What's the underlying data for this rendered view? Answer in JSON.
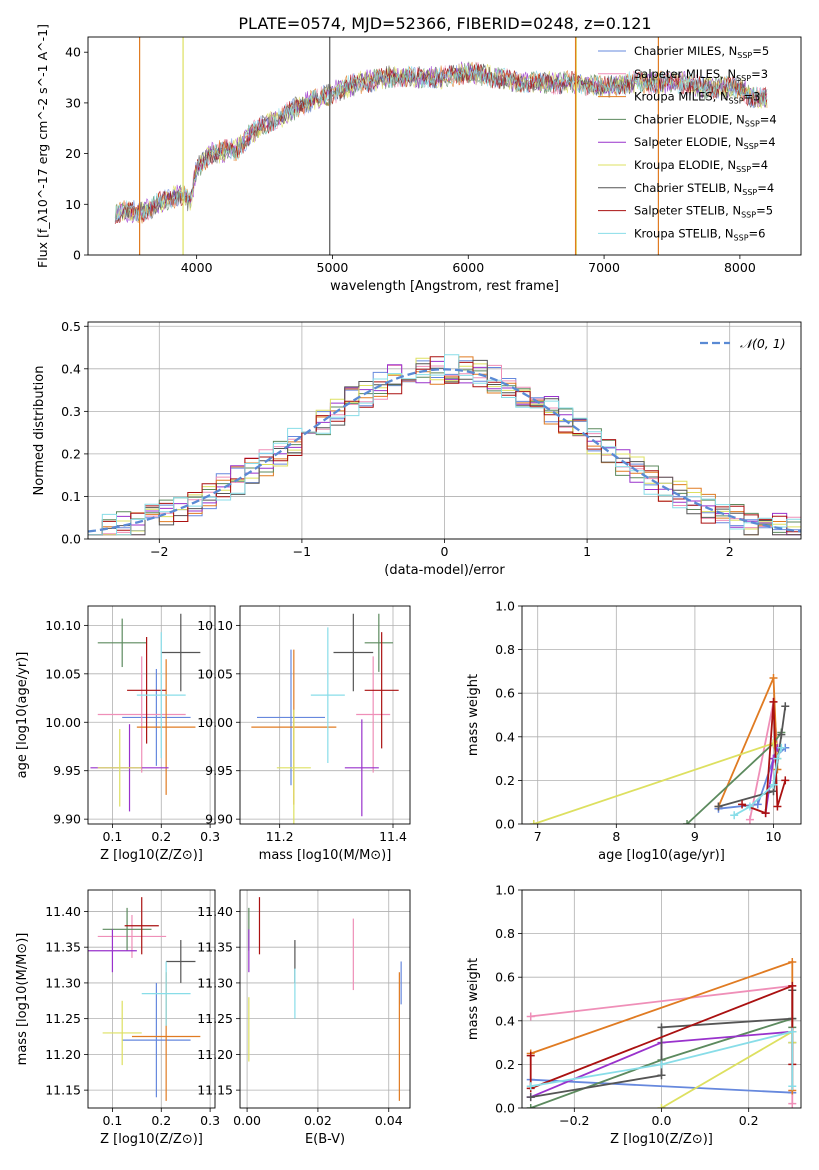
{
  "title": "PLATE=0574, MJD=52366, FIBERID=0248, z=0.121",
  "colors": {
    "Chabrier MILES": "#6688dd",
    "Salpeter MILES": "#ef8fb8",
    "Kroupa MILES": "#e07b22",
    "Chabrier ELODIE": "#5c8a5e",
    "Salpeter ELODIE": "#9932cc",
    "Kroupa ELODIE": "#dde060",
    "Chabrier STELIB": "#555555",
    "Salpeter STELIB": "#aa1111",
    "Kroupa STELIB": "#88dde8"
  },
  "chart_data": [
    {
      "id": "spectrum",
      "type": "line",
      "xlabel": "wavelength [Angstrom, rest frame]",
      "ylabel": "Flux [f_λ10^-17 erg cm^-2 s^-1 A^-1]",
      "xlim": [
        3200,
        8450
      ],
      "ylim": [
        0,
        43
      ],
      "xticks": [
        4000,
        5000,
        6000,
        7000,
        8000
      ],
      "yticks": [
        0,
        10,
        20,
        30,
        40
      ],
      "legend_position": "upper-right",
      "series": [
        {
          "name": "Chabrier MILES, N_SSP=5",
          "legend": "Chabrier MILES, N",
          "sub": "SSP",
          "suffix": "=5",
          "color": "Chabrier MILES"
        },
        {
          "name": "Salpeter MILES, N_SSP=3",
          "legend": "Salpeter MILES, N",
          "sub": "SSP",
          "suffix": "=3",
          "color": "Salpeter MILES"
        },
        {
          "name": "Kroupa MILES, N_SSP=3",
          "legend": "Kroupa MILES, N",
          "sub": "SSP",
          "suffix": "=3",
          "color": "Kroupa MILES"
        },
        {
          "name": "Chabrier ELODIE, N_SSP=4",
          "legend": "Chabrier ELODIE, N",
          "sub": "SSP",
          "suffix": "=4",
          "color": "Chabrier ELODIE"
        },
        {
          "name": "Salpeter ELODIE, N_SSP=4",
          "legend": "Salpeter ELODIE, N",
          "sub": "SSP",
          "suffix": "=4",
          "color": "Salpeter ELODIE"
        },
        {
          "name": "Kroupa ELODIE, N_SSP=4",
          "legend": "Kroupa ELODIE, N",
          "sub": "SSP",
          "suffix": "=4",
          "color": "Kroupa ELODIE"
        },
        {
          "name": "Chabrier STELIB, N_SSP=4",
          "legend": "Chabrier STELIB, N",
          "sub": "SSP",
          "suffix": "=4",
          "color": "Chabrier STELIB"
        },
        {
          "name": "Salpeter STELIB, N_SSP=5",
          "legend": "Salpeter STELIB, N",
          "sub": "SSP",
          "suffix": "=5",
          "color": "Salpeter STELIB"
        },
        {
          "name": "Kroupa STELIB, N_SSP=6",
          "legend": "Kroupa STELIB, N",
          "sub": "SSP",
          "suffix": "=6",
          "color": "Kroupa STELIB"
        }
      ],
      "continuum": [
        [
          3400,
          8.5
        ],
        [
          3600,
          8.5
        ],
        [
          3700,
          10
        ],
        [
          3800,
          11
        ],
        [
          3900,
          12
        ],
        [
          3950,
          10
        ],
        [
          4000,
          17
        ],
        [
          4100,
          20
        ],
        [
          4300,
          21
        ],
        [
          4400,
          24
        ],
        [
          4600,
          27
        ],
        [
          4800,
          30
        ],
        [
          5000,
          32
        ],
        [
          5200,
          34
        ],
        [
          5400,
          35
        ],
        [
          5600,
          35
        ],
        [
          5800,
          35
        ],
        [
          6000,
          36
        ],
        [
          6200,
          35
        ],
        [
          6400,
          34
        ],
        [
          6600,
          34
        ],
        [
          6800,
          34
        ],
        [
          7000,
          33
        ],
        [
          7200,
          34
        ],
        [
          7400,
          34
        ],
        [
          7600,
          34
        ],
        [
          7700,
          33
        ],
        [
          7800,
          33
        ],
        [
          8000,
          33
        ],
        [
          8100,
          31
        ],
        [
          8200,
          31
        ]
      ],
      "spikes": [
        {
          "x": 3580,
          "color": "Kroupa MILES"
        },
        {
          "x": 3900,
          "color": "Kroupa ELODIE"
        },
        {
          "x": 4980,
          "color": "Chabrier STELIB"
        },
        {
          "x": 6795,
          "color": "Kroupa ELODIE"
        },
        {
          "x": 6790,
          "color": "Kroupa MILES"
        },
        {
          "x": 7400,
          "color": "Kroupa MILES"
        }
      ]
    },
    {
      "id": "residuals",
      "type": "line",
      "xlabel": "(data-model)/error",
      "ylabel": "Normed distribution",
      "xlim": [
        -2.5,
        2.5
      ],
      "ylim": [
        0,
        0.51
      ],
      "xticks": [
        -2,
        -1,
        0,
        1,
        2
      ],
      "yticks": [
        0.0,
        0.1,
        0.2,
        0.3,
        0.4,
        0.5
      ],
      "legend": "𝒩(0, 1)",
      "legend_position": "upper-right",
      "bin_width": 0.1
    },
    {
      "id": "age-vs-Z",
      "type": "scatter",
      "xlabel": "Z [log10(Z/Z⊙)]",
      "ylabel": "age  [log10(age/yr)]",
      "xlim": [
        0.05,
        0.31
      ],
      "ylim": [
        9.895,
        10.12
      ],
      "xticks": [
        0.1,
        0.2,
        0.3
      ],
      "yticks": [
        9.9,
        9.95,
        10.0,
        10.05,
        10.1
      ],
      "points": [
        {
          "series": "Chabrier MILES",
          "x": 0.19,
          "xerr": 0.07,
          "y": 10.005,
          "yerr": 0.05
        },
        {
          "series": "Salpeter MILES",
          "x": 0.16,
          "xerr": 0.09,
          "y": 10.008,
          "yerr": 0.06
        },
        {
          "series": "Kroupa MILES",
          "x": 0.21,
          "xerr": 0.06,
          "y": 9.995,
          "yerr": 0.07
        },
        {
          "series": "Chabrier ELODIE",
          "x": 0.12,
          "xerr": 0.05,
          "y": 10.082,
          "yerr": 0.025
        },
        {
          "series": "Salpeter ELODIE",
          "x": 0.135,
          "xerr": 0.08,
          "y": 9.953,
          "yerr": 0.045
        },
        {
          "series": "Kroupa ELODIE",
          "x": 0.115,
          "xerr": 0.045,
          "y": 9.953,
          "yerr": 0.04
        },
        {
          "series": "Chabrier STELIB",
          "x": 0.24,
          "xerr": 0.04,
          "y": 10.072,
          "yerr": 0.04
        },
        {
          "series": "Salpeter STELIB",
          "x": 0.17,
          "xerr": 0.04,
          "y": 10.033,
          "yerr": 0.055
        },
        {
          "series": "Kroupa STELIB",
          "x": 0.2,
          "xerr": 0.05,
          "y": 10.028,
          "yerr": 0.065
        }
      ]
    },
    {
      "id": "age-vs-mass",
      "type": "scatter",
      "xlabel": "mass [log10(M/M⊙)]",
      "ylabel": "",
      "xlim": [
        11.13,
        11.43
      ],
      "ylim": [
        9.895,
        10.12
      ],
      "xticks": [
        11.2,
        11.4
      ],
      "yticks": [
        9.9,
        9.95,
        10.0,
        10.05,
        10.1
      ],
      "points": [
        {
          "series": "Chabrier MILES",
          "x": 11.22,
          "xerr": 0.06,
          "y": 10.005,
          "yerr": 0.07
        },
        {
          "series": "Salpeter MILES",
          "x": 11.365,
          "xerr": 0.03,
          "y": 10.008,
          "yerr": 0.06
        },
        {
          "series": "Kroupa MILES",
          "x": 11.225,
          "xerr": 0.075,
          "y": 9.995,
          "yerr": 0.08
        },
        {
          "series": "Chabrier ELODIE",
          "x": 11.375,
          "xerr": 0.025,
          "y": 10.082,
          "yerr": 0.03
        },
        {
          "series": "Salpeter ELODIE",
          "x": 11.345,
          "xerr": 0.03,
          "y": 9.953,
          "yerr": 0.05
        },
        {
          "series": "Kroupa ELODIE",
          "x": 11.225,
          "xerr": 0.03,
          "y": 9.953,
          "yerr": 0.06
        },
        {
          "series": "Chabrier STELIB",
          "x": 11.33,
          "xerr": 0.035,
          "y": 10.072,
          "yerr": 0.04
        },
        {
          "series": "Salpeter STELIB",
          "x": 11.38,
          "xerr": 0.03,
          "y": 10.033,
          "yerr": 0.06
        },
        {
          "series": "Kroupa STELIB",
          "x": 11.285,
          "xerr": 0.03,
          "y": 10.028,
          "yerr": 0.07
        }
      ]
    },
    {
      "id": "weight-vs-age",
      "type": "line",
      "xlabel": "age  [log10(age/yr)]",
      "ylabel": "mass weight",
      "xlim": [
        6.8,
        10.35
      ],
      "ylim": [
        0,
        1
      ],
      "xticks": [
        7,
        8,
        9,
        10
      ],
      "yticks": [
        0.0,
        0.2,
        0.4,
        0.6,
        0.8,
        1.0
      ],
      "series": [
        {
          "series": "Chabrier MILES",
          "x": [
            9.3,
            9.8,
            10.0,
            10.15
          ],
          "y": [
            0.07,
            0.09,
            0.3,
            0.35
          ]
        },
        {
          "series": "Salpeter MILES",
          "x": [
            9.7,
            10.0,
            10.05
          ],
          "y": [
            0.02,
            0.56,
            0.35
          ]
        },
        {
          "series": "Kroupa MILES",
          "x": [
            9.3,
            10.0,
            10.05
          ],
          "y": [
            0.08,
            0.67,
            0.25
          ]
        },
        {
          "series": "Chabrier ELODIE",
          "x": [
            8.9,
            10.0,
            10.1
          ],
          "y": [
            0.0,
            0.37,
            0.42
          ]
        },
        {
          "series": "Salpeter ELODIE",
          "x": [
            9.9,
            10.0,
            10.05
          ],
          "y": [
            0.05,
            0.3,
            0.35
          ]
        },
        {
          "series": "Kroupa ELODIE",
          "x": [
            6.95,
            10.0,
            10.05
          ],
          "y": [
            0.0,
            0.37,
            0.3
          ]
        },
        {
          "series": "Chabrier STELIB",
          "x": [
            9.3,
            10.0,
            10.1,
            10.15
          ],
          "y": [
            0.08,
            0.15,
            0.41,
            0.54
          ]
        },
        {
          "series": "Salpeter STELIB",
          "x": [
            9.6,
            9.9,
            10.0,
            10.05,
            10.15
          ],
          "y": [
            0.09,
            0.05,
            0.56,
            0.08,
            0.2
          ]
        },
        {
          "series": "Kroupa STELIB",
          "x": [
            9.5,
            9.7,
            10.0,
            10.05,
            10.1
          ],
          "y": [
            0.04,
            0.08,
            0.18,
            0.3,
            0.35
          ]
        }
      ]
    },
    {
      "id": "mass-vs-Z",
      "type": "scatter",
      "xlabel": "Z [log10(Z/Z⊙)]",
      "ylabel": "mass [log10(M/M⊙)]",
      "xlim": [
        0.05,
        0.31
      ],
      "ylim": [
        11.125,
        11.43
      ],
      "xticks": [
        0.1,
        0.2,
        0.3
      ],
      "yticks": [
        11.15,
        11.2,
        11.25,
        11.3,
        11.35,
        11.4
      ],
      "points": [
        {
          "series": "Chabrier MILES",
          "x": 0.19,
          "xerr": 0.07,
          "y": 11.22,
          "yerr": 0.08
        },
        {
          "series": "Salpeter MILES",
          "x": 0.14,
          "xerr": 0.07,
          "y": 11.365,
          "yerr": 0.03
        },
        {
          "series": "Kroupa MILES",
          "x": 0.21,
          "xerr": 0.07,
          "y": 11.225,
          "yerr": 0.09
        },
        {
          "series": "Chabrier ELODIE",
          "x": 0.13,
          "xerr": 0.05,
          "y": 11.375,
          "yerr": 0.03
        },
        {
          "series": "Salpeter ELODIE",
          "x": 0.1,
          "xerr": 0.05,
          "y": 11.345,
          "yerr": 0.03
        },
        {
          "series": "Kroupa ELODIE",
          "x": 0.12,
          "xerr": 0.04,
          "y": 11.23,
          "yerr": 0.045
        },
        {
          "series": "Chabrier STELIB",
          "x": 0.24,
          "xerr": 0.03,
          "y": 11.33,
          "yerr": 0.03
        },
        {
          "series": "Salpeter STELIB",
          "x": 0.16,
          "xerr": 0.035,
          "y": 11.38,
          "yerr": 0.04
        },
        {
          "series": "Kroupa STELIB",
          "x": 0.21,
          "xerr": 0.05,
          "y": 11.285,
          "yerr": 0.045
        }
      ]
    },
    {
      "id": "mass-vs-EBV",
      "type": "scatter",
      "xlabel": "E(B-V)",
      "ylabel": "",
      "xlim": [
        -0.002,
        0.046
      ],
      "ylim": [
        11.125,
        11.43
      ],
      "xticks": [
        0.0,
        0.02,
        0.04
      ],
      "yticks": [
        11.15,
        11.2,
        11.25,
        11.3,
        11.35,
        11.4
      ],
      "points": [
        {
          "series": "Chabrier MILES",
          "x": 0.0435,
          "y": 11.3,
          "yerr": 0.03
        },
        {
          "series": "Salpeter MILES",
          "x": 0.03,
          "y": 11.34,
          "yerr": 0.05
        },
        {
          "series": "Kroupa MILES",
          "x": 0.043,
          "y": 11.225,
          "yerr": 0.09
        },
        {
          "series": "Chabrier ELODIE",
          "x": 0.0005,
          "y": 11.375,
          "yerr": 0.03
        },
        {
          "series": "Salpeter ELODIE",
          "x": 0.0005,
          "y": 11.345,
          "yerr": 0.03
        },
        {
          "series": "Kroupa ELODIE",
          "x": 0.0005,
          "y": 11.235,
          "yerr": 0.045
        },
        {
          "series": "Chabrier STELIB",
          "x": 0.0135,
          "y": 11.33,
          "yerr": 0.03
        },
        {
          "series": "Salpeter STELIB",
          "x": 0.0035,
          "y": 11.38,
          "yerr": 0.04
        },
        {
          "series": "Kroupa STELIB",
          "x": 0.0135,
          "y": 11.285,
          "yerr": 0.035
        }
      ]
    },
    {
      "id": "weight-vs-Z",
      "type": "line",
      "xlabel": "Z [log10(Z/Z⊙)]",
      "ylabel": "mass weight",
      "xlim": [
        -0.32,
        0.32
      ],
      "ylim": [
        0,
        1
      ],
      "xticks": [
        -0.2,
        0.0,
        0.2
      ],
      "yticks": [
        0.0,
        0.2,
        0.4,
        0.6,
        0.8,
        1.0
      ],
      "series": [
        {
          "series": "Chabrier MILES",
          "x": [
            -0.3,
            0.3,
            0.3
          ],
          "y": [
            0.13,
            0.07,
            0.3
          ]
        },
        {
          "series": "Salpeter MILES",
          "x": [
            -0.3,
            0.3,
            0.3
          ],
          "y": [
            0.42,
            0.56,
            0.02
          ]
        },
        {
          "series": "Kroupa MILES",
          "x": [
            -0.3,
            0.3,
            0.3
          ],
          "y": [
            0.25,
            0.67,
            0.08
          ]
        },
        {
          "series": "Chabrier ELODIE",
          "x": [
            -0.3,
            0.0,
            0.3,
            0.3
          ],
          "y": [
            0.0,
            0.22,
            0.41,
            0.37
          ]
        },
        {
          "series": "Salpeter ELODIE",
          "x": [
            -0.3,
            0.0,
            0.3
          ],
          "y": [
            0.05,
            0.3,
            0.35
          ]
        },
        {
          "series": "Kroupa ELODIE",
          "x": [
            0.0,
            0.3,
            0.3
          ],
          "y": [
            0.0,
            0.35,
            0.3
          ]
        },
        {
          "series": "Chabrier STELIB",
          "x": [
            -0.3,
            0.0,
            0.0,
            0.3,
            0.3
          ],
          "y": [
            0.05,
            0.15,
            0.37,
            0.41,
            0.54
          ]
        },
        {
          "series": "Salpeter STELIB",
          "x": [
            -0.3,
            -0.3,
            0.3,
            0.3
          ],
          "y": [
            0.24,
            0.09,
            0.56,
            0.2
          ]
        },
        {
          "series": "Kroupa STELIB",
          "x": [
            -0.3,
            0.0,
            0.3,
            0.3
          ],
          "y": [
            0.1,
            0.2,
            0.35,
            0.1
          ]
        }
      ]
    }
  ]
}
